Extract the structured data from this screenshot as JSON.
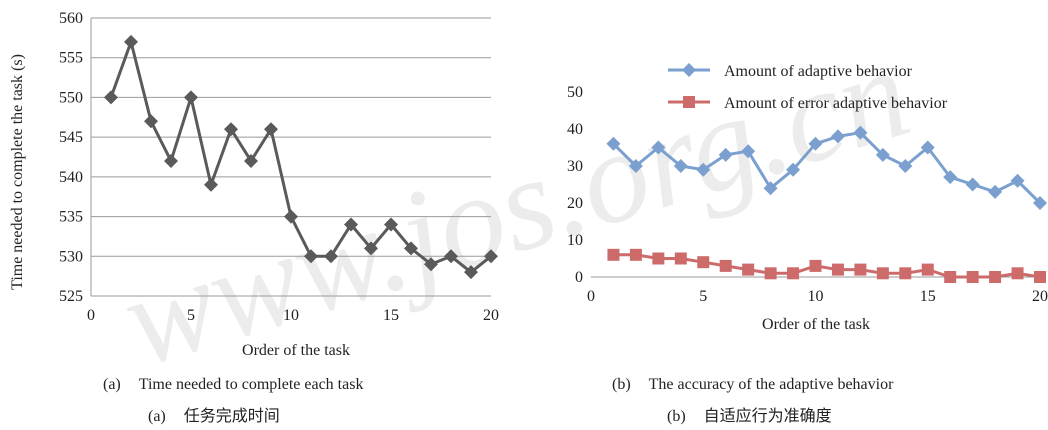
{
  "watermark": {
    "text": "www.jos.org.cn",
    "color": "#e6e6e6"
  },
  "chart_data": [
    {
      "type": "line",
      "color": "#5a5a5a",
      "x": [
        1,
        2,
        3,
        4,
        5,
        6,
        7,
        8,
        9,
        10,
        11,
        12,
        13,
        14,
        15,
        16,
        17,
        18,
        19,
        20
      ],
      "series": [
        {
          "values": [
            550,
            557,
            547,
            542,
            550,
            539,
            546,
            542,
            546,
            535,
            530,
            530,
            534,
            531,
            534,
            531,
            529,
            530,
            528,
            530
          ]
        }
      ],
      "xlabel": "Order of the task",
      "ylabel": "Time needed to complete the task (s)",
      "xlim": [
        0,
        20
      ],
      "ylim": [
        525,
        560
      ],
      "xticks": [
        0,
        5,
        10,
        15,
        20
      ],
      "yticks": [
        525,
        530,
        535,
        540,
        545,
        550,
        555,
        560
      ],
      "grid": true,
      "caption_en": {
        "label": "(a)",
        "text": "Time needed to complete each task"
      },
      "caption_zh": {
        "label": "(a)",
        "text": "任务完成时间"
      }
    },
    {
      "type": "line",
      "x": [
        1,
        2,
        3,
        4,
        5,
        6,
        7,
        8,
        9,
        10,
        11,
        12,
        13,
        14,
        15,
        16,
        17,
        18,
        19,
        20
      ],
      "series": [
        {
          "name": "Amount of adaptive behavior",
          "color": "#7b9fcf",
          "marker": "diamond",
          "values": [
            36,
            30,
            35,
            30,
            29,
            33,
            34,
            24,
            29,
            36,
            38,
            39,
            33,
            30,
            35,
            27,
            25,
            23,
            26,
            20
          ]
        },
        {
          "name": "Amount of error adaptive behavior",
          "color": "#cd6b6b",
          "marker": "square",
          "values": [
            6,
            6,
            5,
            5,
            4,
            3,
            2,
            1,
            1,
            3,
            2,
            2,
            1,
            1,
            2,
            0,
            0,
            0,
            1,
            0
          ]
        }
      ],
      "xlabel": "Order of the task",
      "ylabel": "",
      "xlim": [
        0,
        20
      ],
      "ylim": [
        0,
        50
      ],
      "xticks": [
        0,
        5,
        10,
        15,
        20
      ],
      "yticks": [
        0,
        10,
        20,
        30,
        40,
        50
      ],
      "grid": false,
      "legend": "top",
      "caption_en": {
        "label": "(b)",
        "text": "The accuracy of the adaptive behavior"
      },
      "caption_zh": {
        "label": "(b)",
        "text": "自适应行为准确度"
      }
    }
  ]
}
